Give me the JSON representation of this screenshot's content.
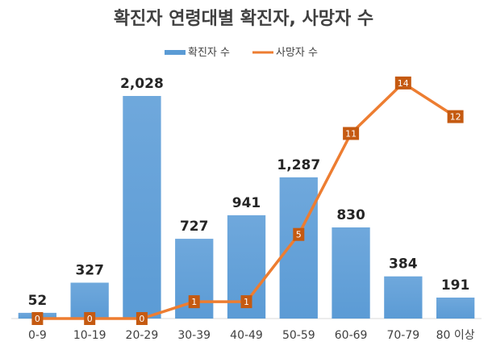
{
  "chart_data": {
    "type": "bar",
    "title": "확진자 연령대별 확진자, 사망자 수",
    "categories": [
      "0-9",
      "10-19",
      "20-29",
      "30-39",
      "40-49",
      "50-59",
      "60-69",
      "70-79",
      "80 이상"
    ],
    "series": [
      {
        "name": "확진자 수",
        "type": "bar",
        "values": [
          52,
          327,
          2028,
          727,
          941,
          1287,
          830,
          384,
          191
        ],
        "value_labels": [
          "52",
          "327",
          "2,028",
          "727",
          "941",
          "1,287",
          "830",
          "384",
          "191"
        ],
        "color": "#5B9BD5"
      },
      {
        "name": "사망자 수",
        "type": "line",
        "values": [
          0,
          0,
          0,
          1,
          1,
          5,
          11,
          14,
          12
        ],
        "color": "#ED7D31",
        "label_bg": "#C55A11"
      }
    ],
    "legend_position": "top",
    "xlabel": "",
    "ylabel": "",
    "bar_ylim": [
      0,
      2300
    ],
    "line_ylim": [
      0,
      15
    ],
    "grid": false
  }
}
